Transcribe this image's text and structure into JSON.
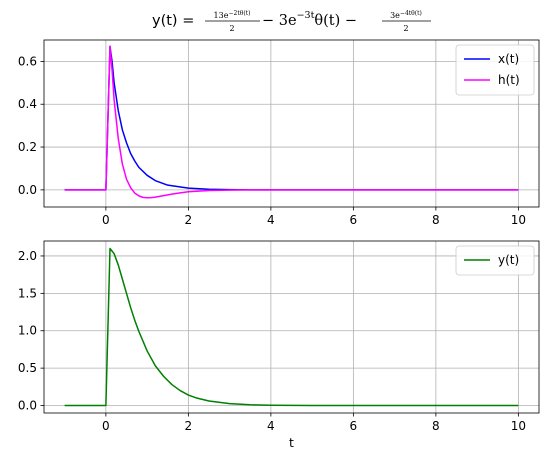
{
  "title": {
    "prefix": "y(t) = ",
    "frac1_num": "13e",
    "frac1_num_sup": "−2tθ(t)",
    "frac1_den": "2",
    "middle": " − 3e",
    "middle_sup": "−3t",
    "middle_tail": "θ(t) −",
    "frac2_num": "3e",
    "frac2_num_sup": "−4tθ(t)",
    "frac2_den": "2"
  },
  "chart_data": [
    {
      "type": "line",
      "title": "y(t) = 13e^{-2tθ(t)}/2 − 3e^{-3t}θ(t) − 3e^{-4tθ(t)}/2",
      "xlabel": "",
      "ylabel": "",
      "xlim": [
        -1.5,
        10.5
      ],
      "ylim": [
        -0.08,
        0.7
      ],
      "x_ticks": [
        0,
        2,
        4,
        6,
        8,
        10
      ],
      "x_tick_labels": [
        "0",
        "2",
        "4",
        "6",
        "8",
        "10"
      ],
      "y_ticks": [
        0.0,
        0.2,
        0.4,
        0.6
      ],
      "y_tick_labels": [
        "0.0",
        "0.2",
        "0.4",
        "0.6"
      ],
      "grid": true,
      "legend": "top-right",
      "series": [
        {
          "name": "x(t)",
          "color": "#0000ff",
          "x": [
            -1.0,
            0.0,
            0.0,
            0.1,
            0.15,
            0.2,
            0.3,
            0.4,
            0.5,
            0.6,
            0.7,
            0.8,
            1.0,
            1.2,
            1.5,
            2.0,
            2.5,
            3.0,
            3.5,
            4.0,
            6.0,
            8.0,
            10.0
          ],
          "y": [
            0.0,
            0.0,
            0.0,
            0.67,
            0.6,
            0.5,
            0.37,
            0.28,
            0.22,
            0.17,
            0.135,
            0.105,
            0.068,
            0.043,
            0.022,
            0.008,
            0.003,
            0.001,
            0.0,
            0.0,
            0.0,
            0.0,
            0.0
          ]
        },
        {
          "name": "h(t)",
          "color": "#ff00ff",
          "x": [
            -1.0,
            0.0,
            0.0,
            0.1,
            0.15,
            0.2,
            0.3,
            0.4,
            0.5,
            0.6,
            0.7,
            0.8,
            0.9,
            1.0,
            1.1,
            1.2,
            1.4,
            1.6,
            1.8,
            2.0,
            2.5,
            3.0,
            3.5,
            4.0,
            6.0,
            8.0,
            10.0
          ],
          "y": [
            0.0,
            0.0,
            0.0,
            0.67,
            0.56,
            0.42,
            0.24,
            0.12,
            0.05,
            0.01,
            -0.015,
            -0.028,
            -0.035,
            -0.037,
            -0.036,
            -0.034,
            -0.027,
            -0.02,
            -0.014,
            -0.009,
            -0.003,
            -0.001,
            0.0,
            0.0,
            0.0,
            0.0,
            0.0
          ]
        }
      ]
    },
    {
      "type": "line",
      "xlabel": "t",
      "ylabel": "",
      "xlim": [
        -1.5,
        10.5
      ],
      "ylim": [
        -0.1,
        2.2
      ],
      "x_ticks": [
        0,
        2,
        4,
        6,
        8,
        10
      ],
      "x_tick_labels": [
        "0",
        "2",
        "4",
        "6",
        "8",
        "10"
      ],
      "y_ticks": [
        0.0,
        0.5,
        1.0,
        1.5,
        2.0
      ],
      "y_tick_labels": [
        "0.0",
        "0.5",
        "1.0",
        "1.5",
        "2.0"
      ],
      "grid": true,
      "legend": "top-right",
      "series": [
        {
          "name": "y(t)",
          "color": "#008000",
          "x": [
            -1.0,
            0.0,
            0.0,
            0.1,
            0.2,
            0.3,
            0.4,
            0.5,
            0.6,
            0.7,
            0.8,
            1.0,
            1.2,
            1.4,
            1.6,
            1.8,
            2.0,
            2.2,
            2.5,
            3.0,
            3.5,
            4.0,
            5.0,
            6.0,
            8.0,
            10.0
          ],
          "y": [
            0.0,
            0.0,
            0.0,
            2.1,
            2.03,
            1.88,
            1.69,
            1.5,
            1.31,
            1.14,
            0.99,
            0.73,
            0.53,
            0.39,
            0.28,
            0.2,
            0.14,
            0.1,
            0.06,
            0.025,
            0.01,
            0.004,
            0.001,
            0.0,
            0.0,
            0.0
          ]
        }
      ]
    }
  ]
}
